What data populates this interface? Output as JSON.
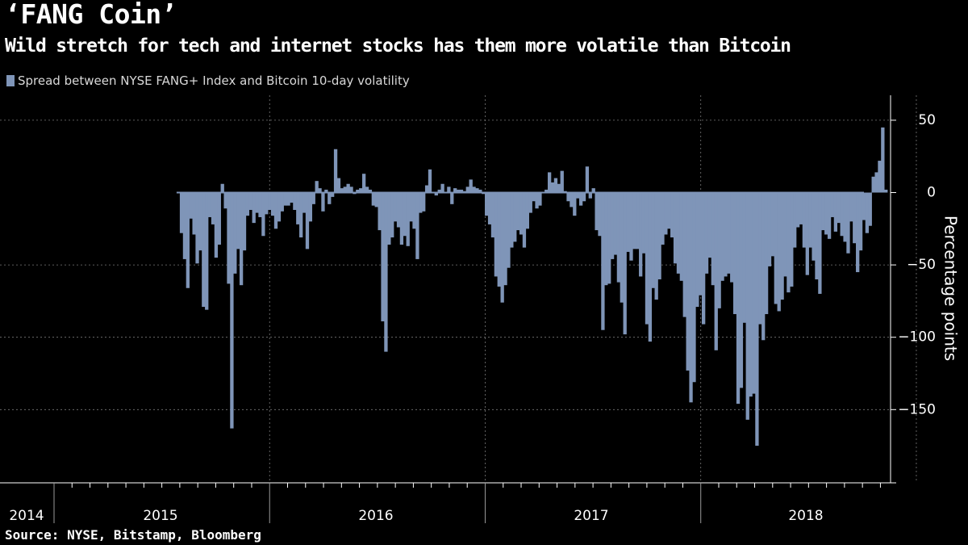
{
  "title": "‘FANG Coin’",
  "subtitle": "Wild stretch for tech and internet stocks has them more volatile than Bitcoin",
  "legend_label": "Spread between NYSE FANG+ Index and Bitcoin 10-day volatility",
  "source": "Source: NYSE, Bitstamp, Bloomberg",
  "colors": {
    "bar": "#7f95b8",
    "highlight": "#e8344a",
    "grid": "#7a7a7a"
  },
  "chart_data": {
    "type": "bar",
    "ylabel": "Percentage points",
    "ylim": [
      -200,
      65
    ],
    "yticks": [
      50,
      0,
      -50,
      -100,
      -150
    ],
    "year_labels": [
      "2014",
      "2015",
      "2016",
      "2017",
      "2018"
    ],
    "grid": true,
    "highlight_box": {
      "from": "2018-10",
      "to": "2018-12"
    },
    "series": [
      {
        "start": "2014-08",
        "end": "2018-12",
        "values": [
          -28,
          -46,
          -66,
          -18,
          -29,
          -49,
          -40,
          -79,
          -81,
          -17,
          -22,
          -45,
          -36,
          6,
          -11,
          -63,
          -163,
          -56,
          -39,
          -64,
          -40,
          -16,
          -12,
          -21,
          -14,
          -17,
          -30,
          -15,
          -12,
          -16,
          -25,
          -20,
          -13,
          -9,
          -9,
          -7,
          -12,
          -22,
          -31,
          -14,
          -39,
          -20,
          -8,
          8,
          3,
          -13,
          2,
          -8,
          -3,
          30,
          10,
          3,
          4,
          6,
          4,
          -1,
          2,
          3,
          13,
          4,
          2,
          -9,
          -10,
          -26,
          -89,
          -110,
          -36,
          -31,
          -20,
          -24,
          -36,
          -30,
          -37,
          -20,
          -25,
          -46,
          -14,
          -13,
          5,
          16,
          0,
          -2,
          2,
          6,
          0,
          4,
          -8,
          3,
          2,
          2,
          1,
          4,
          9,
          4,
          3,
          2,
          -1,
          -16,
          -22,
          -31,
          -58,
          -65,
          -76,
          -64,
          -52,
          -38,
          -34,
          -26,
          -29,
          -38,
          -25,
          -14,
          -6,
          -11,
          -9,
          0,
          2,
          14,
          7,
          10,
          6,
          15,
          1,
          -6,
          -10,
          -16,
          -4,
          -9,
          -6,
          18,
          -4,
          3,
          -26,
          -30,
          -95,
          -64,
          -63,
          -46,
          -43,
          -62,
          -76,
          -98,
          -41,
          -47,
          -39,
          -39,
          -58,
          -42,
          -91,
          -103,
          -66,
          -74,
          -60,
          -36,
          -29,
          -25,
          -31,
          -49,
          -56,
          -61,
          -86,
          -123,
          -145,
          -131,
          -79,
          -71,
          -91,
          -56,
          -45,
          -64,
          -109,
          -80,
          -61,
          -58,
          -56,
          -62,
          -84,
          -146,
          -135,
          -90,
          -157,
          -141,
          -139,
          -175,
          -91,
          -102,
          -84,
          -51,
          -44,
          -77,
          -82,
          -74,
          -58,
          -69,
          -65,
          -38,
          -24,
          -22,
          -38,
          -57,
          -38,
          -47,
          -60,
          -70,
          -26,
          -29,
          -32,
          -17,
          -27,
          -21,
          -30,
          -34,
          -42,
          -20,
          -35,
          -55,
          -40,
          -19,
          -28,
          -23,
          11,
          14,
          22,
          45,
          2
        ]
      }
    ]
  }
}
